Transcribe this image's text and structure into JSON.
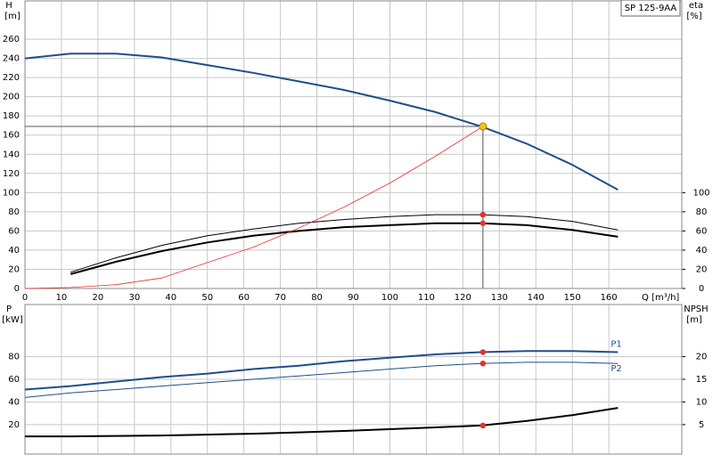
{
  "chart_data": [
    {
      "type": "line",
      "title": "SP 125-9AA",
      "xlabel": "Q [m³/h]",
      "ylabel": "H",
      "yunit": "[m]",
      "y2label": "eta",
      "y2unit": "[%]",
      "xlim": [
        0,
        180
      ],
      "xticks": [
        0,
        10,
        20,
        30,
        40,
        50,
        60,
        70,
        80,
        90,
        100,
        110,
        120,
        130,
        140,
        150,
        160
      ],
      "ylim": [
        0,
        300
      ],
      "yticks": [
        0,
        20,
        40,
        60,
        80,
        100,
        120,
        140,
        160,
        180,
        200,
        220,
        240,
        260
      ],
      "y2lim": [
        0,
        300
      ],
      "y2ticks": [
        0,
        20,
        40,
        60,
        80,
        100
      ],
      "grid": true,
      "series": [
        {
          "color": "#1f4e8c",
          "width": 2,
          "x": [
            0,
            12.5,
            25,
            37.5,
            50,
            62.5,
            75,
            87.5,
            100,
            112.5,
            125,
            137.5,
            150,
            162.5
          ],
          "values": [
            240,
            245,
            245,
            241,
            233,
            225,
            216,
            207,
            196,
            184,
            169,
            151,
            129,
            103
          ]
        },
        {
          "color": "#000000",
          "width": 1,
          "axis": "y2",
          "x": [
            12.5,
            25,
            37.5,
            50,
            62.5,
            75,
            87.5,
            100,
            112.5,
            125,
            137.5,
            150,
            162.5
          ],
          "values": [
            17,
            32,
            45,
            55,
            62,
            68,
            72,
            75,
            77,
            77,
            75,
            70,
            61
          ]
        },
        {
          "color": "#000000",
          "width": 2,
          "axis": "y2",
          "x": [
            12.5,
            25,
            37.5,
            50,
            62.5,
            75,
            87.5,
            100,
            112.5,
            125,
            137.5,
            150,
            162.5
          ],
          "values": [
            15,
            28,
            39,
            48,
            55,
            60,
            64,
            66,
            68,
            68,
            66,
            61,
            54
          ]
        },
        {
          "color": "#e8302a",
          "width": 0.8,
          "x": [
            0,
            12.5,
            25,
            37.5,
            50,
            62.5,
            75,
            87.5,
            100,
            112.5,
            125.5
          ],
          "values": [
            0,
            1,
            4,
            11,
            27,
            43,
            63,
            85,
            110,
            138,
            169
          ]
        }
      ],
      "points": [
        {
          "x": 125.5,
          "y": 169,
          "color": "#f5c518",
          "guide": true
        },
        {
          "x": 125.5,
          "y": 77,
          "axis": "y2",
          "color": "#e8302a"
        },
        {
          "x": 125.5,
          "y": 68,
          "axis": "y2",
          "color": "#e8302a"
        }
      ]
    },
    {
      "type": "line",
      "ylabel": "P",
      "yunit": "[kW]",
      "y2label": "NPSH",
      "y2unit": "[m]",
      "xlim": [
        0,
        180
      ],
      "xticks": [
        0,
        10,
        20,
        30,
        40,
        50,
        60,
        70,
        80,
        90,
        100,
        110,
        120,
        130,
        140,
        150,
        160
      ],
      "ylim": [
        -6,
        126
      ],
      "yticks": [
        20,
        40,
        60,
        80
      ],
      "y2lim": [
        -1.5,
        31.5
      ],
      "y2ticks": [
        5,
        10,
        15,
        20
      ],
      "grid": true,
      "series": [
        {
          "name": "P1",
          "color": "#1f4e8c",
          "width": 2,
          "x": [
            0,
            12.5,
            25,
            37.5,
            50,
            62.5,
            75,
            87.5,
            100,
            112.5,
            125,
            137.5,
            150,
            162.5
          ],
          "values": [
            51,
            54,
            58,
            62,
            65,
            69,
            72,
            76,
            79,
            82,
            84,
            85,
            85,
            84
          ]
        },
        {
          "name": "P2",
          "color": "#1f4e8c",
          "width": 1,
          "x": [
            0,
            12.5,
            25,
            37.5,
            50,
            62.5,
            75,
            87.5,
            100,
            112.5,
            125,
            137.5,
            150,
            162.5
          ],
          "values": [
            44,
            48,
            51,
            54,
            57,
            60,
            63,
            66,
            69,
            72,
            74,
            75,
            75,
            74
          ]
        },
        {
          "color": "#000000",
          "width": 2,
          "axis": "y2",
          "x": [
            0,
            12.5,
            25,
            37.5,
            50,
            62.5,
            75,
            87.5,
            100,
            112.5,
            125,
            137.5,
            150,
            162.5
          ],
          "values": [
            2.4,
            2.4,
            2.5,
            2.6,
            2.8,
            3.0,
            3.3,
            3.6,
            4.0,
            4.4,
            4.8,
            5.8,
            7.1,
            8.7
          ]
        }
      ],
      "points": [
        {
          "x": 125.5,
          "y": 84,
          "color": "#e8302a"
        },
        {
          "x": 125.5,
          "y": 74,
          "color": "#e8302a"
        },
        {
          "x": 125.5,
          "y": 4.8,
          "axis": "y2",
          "color": "#e8302a"
        }
      ]
    }
  ]
}
